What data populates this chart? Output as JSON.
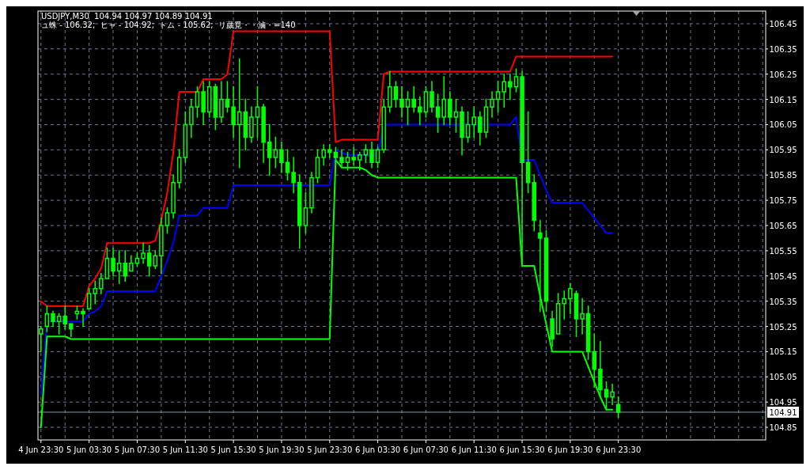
{
  "chart_data": {
    "type": "candlestick",
    "title": "USDJPY,M30  104.94 104.97 104.89 104.91",
    "subtitle": "ュ蛛 - 106.32;  ヒャ - 104.92;  トム - 105.62;  リ蒇覓・・滷・=140",
    "categories": [
      "4 Jun 23:30",
      null,
      null,
      null,
      null,
      null,
      null,
      null,
      "5 Jun 03:30",
      null,
      null,
      null,
      null,
      null,
      null,
      null,
      "5 Jun 07:30",
      null,
      null,
      null,
      null,
      null,
      null,
      null,
      "5 Jun 11:30",
      null,
      null,
      null,
      null,
      null,
      null,
      null,
      "5 Jun 15:30",
      null,
      null,
      null,
      null,
      null,
      null,
      null,
      "5 Jun 19:30",
      null,
      null,
      null,
      null,
      null,
      null,
      null,
      "5 Jun 23:30",
      null,
      null,
      null,
      null,
      null,
      null,
      null,
      "6 Jun 03:30",
      null,
      null,
      null,
      null,
      null,
      null,
      null,
      "6 Jun 07:30",
      null,
      null,
      null,
      null,
      null,
      null,
      null,
      "6 Jun 11:30",
      null,
      null,
      null,
      null,
      null,
      null,
      null,
      "6 Jun 15:30",
      null,
      null,
      null,
      null,
      null,
      null,
      null,
      "6 Jun 19:30",
      null,
      null,
      null,
      null,
      null,
      null,
      null,
      "6 Jun 23:30",
      null,
      null,
      null,
      null,
      null,
      null,
      null,
      null,
      null,
      null,
      null,
      null,
      null,
      null,
      null,
      null,
      null,
      null,
      null,
      null,
      null,
      null,
      null,
      null
    ],
    "ylim": [
      104.8,
      106.5
    ],
    "yticks": [
      104.85,
      104.95,
      105.05,
      105.15,
      105.25,
      105.35,
      105.45,
      105.55,
      105.65,
      105.75,
      105.85,
      105.95,
      106.05,
      106.15,
      106.25,
      106.35,
      106.45
    ],
    "grid": true,
    "marker": "none",
    "ref_lines": [
      {
        "axis": "y",
        "value": 104.91,
        "label": "104.91",
        "color": "#8899aa"
      }
    ],
    "series": [
      {
        "type": "line",
        "color": "#ff0000",
        "values": [
          105.35,
          105.33,
          105.33,
          105.33,
          105.33,
          105.33,
          105.33,
          105.33,
          105.41,
          105.44,
          105.48,
          105.58,
          105.58,
          105.58,
          105.58,
          105.58,
          105.58,
          105.58,
          105.58,
          105.59,
          105.67,
          105.78,
          105.94,
          106.18,
          106.18,
          106.18,
          106.18,
          106.23,
          106.23,
          106.23,
          106.23,
          106.25,
          106.42,
          106.42,
          106.42,
          106.42,
          106.42,
          106.42,
          106.42,
          106.42,
          106.42,
          106.42,
          106.42,
          106.42,
          106.42,
          106.42,
          106.42,
          106.42,
          106.42,
          105.98,
          105.99,
          105.99,
          105.99,
          105.99,
          105.99,
          105.99,
          105.99,
          106.25,
          106.26,
          106.26,
          106.26,
          106.26,
          106.26,
          106.26,
          106.26,
          106.26,
          106.26,
          106.26,
          106.26,
          106.26,
          106.26,
          106.26,
          106.26,
          106.26,
          106.26,
          106.26,
          106.26,
          106.26,
          106.26,
          106.32,
          106.32,
          106.32,
          106.32,
          106.32,
          106.32,
          106.32,
          106.32,
          106.32,
          106.32,
          106.32,
          106.32,
          106.32,
          106.32,
          106.32,
          106.32,
          106.32,
          null,
          null,
          null,
          null,
          null,
          null,
          null,
          null,
          null,
          null,
          null,
          null,
          null,
          null,
          null,
          null,
          null,
          null,
          null,
          null,
          null,
          null,
          null,
          null,
          null
        ]
      },
      {
        "type": "line",
        "color": "#0000ff",
        "values": [
          104.98,
          105.27,
          105.27,
          105.27,
          105.27,
          105.27,
          105.27,
          105.27,
          105.3,
          105.31,
          105.33,
          105.39,
          105.39,
          105.39,
          105.39,
          105.39,
          105.39,
          105.39,
          105.39,
          105.39,
          105.45,
          105.51,
          105.58,
          105.69,
          105.69,
          105.69,
          105.69,
          105.72,
          105.72,
          105.72,
          105.72,
          105.72,
          105.81,
          105.81,
          105.81,
          105.81,
          105.81,
          105.81,
          105.81,
          105.81,
          105.81,
          105.81,
          105.81,
          105.81,
          105.81,
          105.81,
          105.81,
          105.81,
          105.81,
          105.95,
          105.94,
          105.93,
          105.93,
          105.93,
          105.93,
          105.93,
          105.93,
          106.05,
          106.05,
          106.05,
          106.05,
          106.05,
          106.05,
          106.05,
          106.05,
          106.05,
          106.05,
          106.05,
          106.05,
          106.05,
          106.05,
          106.05,
          106.05,
          106.05,
          106.05,
          106.05,
          106.05,
          106.05,
          106.05,
          106.08,
          105.91,
          105.91,
          105.91,
          105.85,
          105.79,
          105.74,
          105.74,
          105.74,
          105.74,
          105.74,
          105.74,
          105.71,
          105.68,
          105.65,
          105.62,
          105.62,
          null,
          null,
          null,
          null,
          null,
          null,
          null,
          null,
          null,
          null,
          null,
          null,
          null,
          null,
          null,
          null,
          null,
          null,
          null,
          null,
          null,
          null,
          null,
          null,
          null
        ]
      },
      {
        "type": "line",
        "color": "#00ff00",
        "values": [
          104.85,
          105.21,
          105.21,
          105.21,
          105.21,
          105.2,
          105.2,
          105.2,
          105.2,
          105.2,
          105.2,
          105.2,
          105.2,
          105.2,
          105.2,
          105.2,
          105.2,
          105.2,
          105.2,
          105.2,
          105.2,
          105.2,
          105.2,
          105.2,
          105.2,
          105.2,
          105.2,
          105.2,
          105.2,
          105.2,
          105.2,
          105.2,
          105.2,
          105.2,
          105.2,
          105.2,
          105.2,
          105.2,
          105.2,
          105.2,
          105.2,
          105.2,
          105.2,
          105.2,
          105.2,
          105.2,
          105.2,
          105.2,
          105.2,
          105.91,
          105.88,
          105.88,
          105.88,
          105.88,
          105.87,
          105.85,
          105.84,
          105.84,
          105.84,
          105.84,
          105.84,
          105.84,
          105.84,
          105.84,
          105.84,
          105.84,
          105.84,
          105.84,
          105.84,
          105.84,
          105.84,
          105.84,
          105.84,
          105.84,
          105.84,
          105.84,
          105.84,
          105.84,
          105.84,
          105.84,
          105.49,
          105.49,
          105.49,
          105.37,
          105.26,
          105.15,
          105.15,
          105.15,
          105.15,
          105.15,
          105.15,
          105.09,
          105.03,
          104.97,
          104.92,
          104.92,
          null,
          null,
          null,
          null,
          null,
          null,
          null,
          null,
          null,
          null,
          null,
          null,
          null,
          null,
          null,
          null,
          null,
          null,
          null,
          null,
          null,
          null,
          null,
          null,
          null
        ]
      },
      {
        "color": "#00ff00",
        "ohlc": [
          [
            105.22,
            105.25,
            105.15,
            105.24
          ],
          [
            105.25,
            105.33,
            105.23,
            105.3
          ],
          [
            105.3,
            105.31,
            105.25,
            105.27
          ],
          [
            105.27,
            105.3,
            105.22,
            105.29
          ],
          [
            105.29,
            105.33,
            105.24,
            105.26
          ],
          [
            105.26,
            105.26,
            105.21,
            105.24
          ],
          [
            105.3,
            105.33,
            105.28,
            105.31
          ],
          [
            105.31,
            105.32,
            105.25,
            105.3
          ],
          [
            105.32,
            105.4,
            105.32,
            105.38
          ],
          [
            105.38,
            105.43,
            105.34,
            105.4
          ],
          [
            105.4,
            105.46,
            105.38,
            105.44
          ],
          [
            105.44,
            105.56,
            105.44,
            105.52
          ],
          [
            105.52,
            105.56,
            105.45,
            105.47
          ],
          [
            105.47,
            105.55,
            105.42,
            105.5
          ],
          [
            105.5,
            105.55,
            105.43,
            105.45
          ],
          [
            105.47,
            105.53,
            105.47,
            105.5
          ],
          [
            105.5,
            105.54,
            105.49,
            105.52
          ],
          [
            105.52,
            105.58,
            105.5,
            105.54
          ],
          [
            105.54,
            105.57,
            105.45,
            105.49
          ],
          [
            105.49,
            105.55,
            105.48,
            105.53
          ],
          [
            105.53,
            105.68,
            105.46,
            105.65
          ],
          [
            105.65,
            105.72,
            105.62,
            105.7
          ],
          [
            105.7,
            105.85,
            105.68,
            105.82
          ],
          [
            105.82,
            105.95,
            105.8,
            105.92
          ],
          [
            105.92,
            106.1,
            105.9,
            106.05
          ],
          [
            106.05,
            106.15,
            106.0,
            106.12
          ],
          [
            106.12,
            106.2,
            106.08,
            106.18
          ],
          [
            106.18,
            106.22,
            106.05,
            106.1
          ],
          [
            106.1,
            106.22,
            106.08,
            106.2
          ],
          [
            106.2,
            106.21,
            106.03,
            106.08
          ],
          [
            106.08,
            106.22,
            106.06,
            106.15
          ],
          [
            106.15,
            106.22,
            106.1,
            106.12
          ],
          [
            106.12,
            106.2,
            106.0,
            106.05
          ],
          [
            106.05,
            106.31,
            105.88,
            106.1
          ],
          [
            106.1,
            106.15,
            105.95,
            106.0
          ],
          [
            106.0,
            106.12,
            105.98,
            106.08
          ],
          [
            106.08,
            106.2,
            106.0,
            106.12
          ],
          [
            106.12,
            106.13,
            105.9,
            105.98
          ],
          [
            105.98,
            106.05,
            105.85,
            105.92
          ],
          [
            105.92,
            106.0,
            105.88,
            105.95
          ],
          [
            105.95,
            105.98,
            105.86,
            105.9
          ],
          [
            105.9,
            105.95,
            105.83,
            105.86
          ],
          [
            105.86,
            105.92,
            105.78,
            105.82
          ],
          [
            105.82,
            105.85,
            105.56,
            105.65
          ],
          [
            105.65,
            105.78,
            105.62,
            105.72
          ],
          [
            105.72,
            105.86,
            105.7,
            105.84
          ],
          [
            105.84,
            105.95,
            105.82,
            105.92
          ],
          [
            105.92,
            105.97,
            105.89,
            105.95
          ],
          [
            105.95,
            105.97,
            105.92,
            105.94
          ],
          [
            105.94,
            105.96,
            105.9,
            105.92
          ],
          [
            105.92,
            105.95,
            105.88,
            105.9
          ],
          [
            105.9,
            105.94,
            105.87,
            105.92
          ],
          [
            105.92,
            105.96,
            105.89,
            105.91
          ],
          [
            105.91,
            105.94,
            105.87,
            105.93
          ],
          [
            105.93,
            105.97,
            105.9,
            105.95
          ],
          [
            105.95,
            105.98,
            105.88,
            105.9
          ],
          [
            105.9,
            105.96,
            105.88,
            105.95
          ],
          [
            105.95,
            106.15,
            105.94,
            106.12
          ],
          [
            106.12,
            106.26,
            106.1,
            106.2
          ],
          [
            106.2,
            106.22,
            106.12,
            106.15
          ],
          [
            106.15,
            106.2,
            106.08,
            106.12
          ],
          [
            106.12,
            106.18,
            106.05,
            106.15
          ],
          [
            106.15,
            106.2,
            106.1,
            106.12
          ],
          [
            106.12,
            106.16,
            106.05,
            106.1
          ],
          [
            106.1,
            106.2,
            106.08,
            106.18
          ],
          [
            106.18,
            106.22,
            106.1,
            106.12
          ],
          [
            106.12,
            106.17,
            106.02,
            106.08
          ],
          [
            106.08,
            106.24,
            106.05,
            106.15
          ],
          [
            106.15,
            106.18,
            106.05,
            106.08
          ],
          [
            106.08,
            106.15,
            106.02,
            106.1
          ],
          [
            106.1,
            106.12,
            105.93,
            106.0
          ],
          [
            106.0,
            106.1,
            105.98,
            106.05
          ],
          [
            106.05,
            106.12,
            106.0,
            106.08
          ],
          [
            106.08,
            106.1,
            105.97,
            106.02
          ],
          [
            106.02,
            106.15,
            106.0,
            106.12
          ],
          [
            106.12,
            106.18,
            106.08,
            106.15
          ],
          [
            106.15,
            106.22,
            106.1,
            106.18
          ],
          [
            106.18,
            106.25,
            106.12,
            106.22
          ],
          [
            106.22,
            106.25,
            106.15,
            106.2
          ],
          [
            106.2,
            106.27,
            106.18,
            106.24
          ],
          [
            106.24,
            106.26,
            105.5,
            105.9
          ],
          [
            105.9,
            106.1,
            105.78,
            105.82
          ],
          [
            105.82,
            105.85,
            105.63,
            105.67
          ],
          [
            105.62,
            105.67,
            105.31,
            105.6
          ],
          [
            105.6,
            105.63,
            105.31,
            105.35
          ],
          [
            105.28,
            105.31,
            105.17,
            105.2
          ],
          [
            105.22,
            105.38,
            105.22,
            105.34
          ],
          [
            105.34,
            105.39,
            105.28,
            105.36
          ],
          [
            105.36,
            105.42,
            105.3,
            105.4
          ],
          [
            105.38,
            105.39,
            105.21,
            105.28
          ],
          [
            105.28,
            105.36,
            105.22,
            105.3
          ],
          [
            105.3,
            105.33,
            105.12,
            105.15
          ],
          [
            105.15,
            105.22,
            105.01,
            105.08
          ],
          [
            105.08,
            105.19,
            104.97,
            105.0
          ],
          [
            105.0,
            105.03,
            104.92,
            104.97
          ],
          [
            104.97,
            105.02,
            104.94,
            104.99
          ],
          [
            104.94,
            104.97,
            104.89,
            104.91
          ],
          null,
          null,
          null,
          null,
          null,
          null,
          null,
          null,
          null,
          null,
          null,
          null,
          null,
          null,
          null,
          null,
          null,
          null,
          null,
          null,
          null,
          null,
          null,
          null
        ]
      }
    ]
  }
}
